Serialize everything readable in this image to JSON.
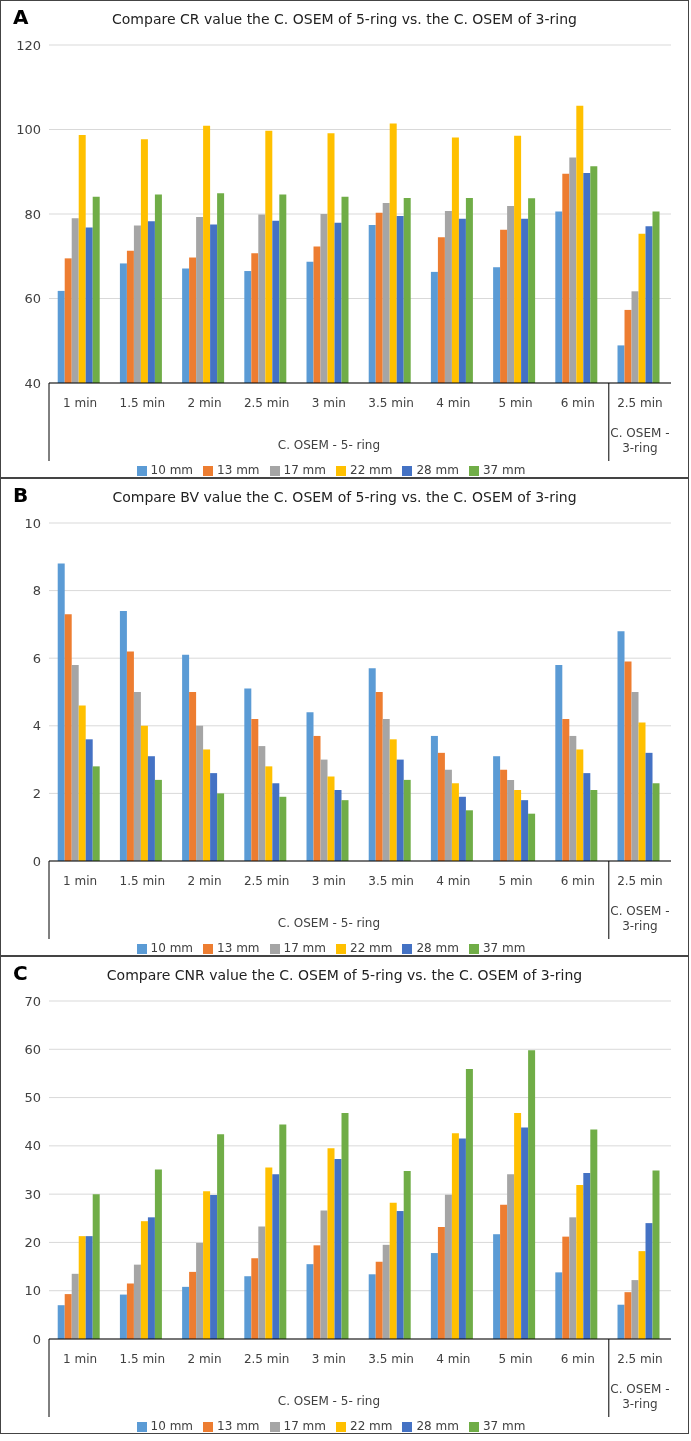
{
  "chart_data": [
    {
      "type": "bar",
      "title": "Compare CR value the C. OSEM of 5-ring vs. the C. OSEM of 3-ring",
      "annotations": [
        "A",
        "C. OSEM - 5- ring",
        "C. OSEM - 3-ring"
      ],
      "categories": [
        "1 min",
        "1.5 min",
        "2 min",
        "2.5 min",
        "3 min",
        "3.5 min",
        "4 min",
        "5 min",
        "6 min",
        "2.5 min"
      ],
      "ylim": [
        40,
        120
      ],
      "yticks": [
        40,
        60,
        80,
        100,
        120
      ],
      "grid": "y",
      "legend": "bottom",
      "series": [
        {
          "name": "10 mm",
          "color": "#5b9bd5",
          "values": [
            61.8,
            68.3,
            67.1,
            66.5,
            68.7,
            77.4,
            66.3,
            67.4,
            80.6,
            48.9
          ]
        },
        {
          "name": "13 mm",
          "color": "#ed7d31",
          "values": [
            69.5,
            71.3,
            69.7,
            70.7,
            72.3,
            80.3,
            74.5,
            76.3,
            89.5,
            57.3
          ]
        },
        {
          "name": "17 mm",
          "color": "#a5a5a5",
          "values": [
            79,
            77.3,
            79.3,
            79.9,
            80,
            82.6,
            80.7,
            81.9,
            93.4,
            61.7
          ]
        },
        {
          "name": "22 mm",
          "color": "#ffc000",
          "values": [
            98.7,
            97.7,
            100.9,
            99.7,
            99.1,
            101.4,
            98.1,
            98.5,
            105.6,
            75.3
          ]
        },
        {
          "name": "28 mm",
          "color": "#4472c4",
          "values": [
            76.8,
            78.3,
            77.5,
            78.4,
            77.9,
            79.5,
            78.9,
            78.9,
            89.7,
            77.1
          ]
        },
        {
          "name": "37 mm",
          "color": "#70ad47",
          "values": [
            84.1,
            84.6,
            84.9,
            84.6,
            84.1,
            83.8,
            83.8,
            83.7,
            91.3,
            80.6
          ]
        }
      ]
    },
    {
      "type": "bar",
      "title": "Compare BV value the C. OSEM of 5-ring vs. the C. OSEM of 3-ring",
      "annotations": [
        "B",
        "C. OSEM - 5- ring",
        "C. OSEM - 3-ring"
      ],
      "categories": [
        "1 min",
        "1.5 min",
        "2 min",
        "2.5 min",
        "3 min",
        "3.5 min",
        "4 min",
        "5 min",
        "6 min",
        "2.5 min"
      ],
      "ylim": [
        0,
        10
      ],
      "yticks": [
        0,
        2,
        4,
        6,
        8,
        10
      ],
      "grid": "y",
      "legend": "bottom",
      "series": [
        {
          "name": "10 mm",
          "color": "#5b9bd5",
          "values": [
            8.8,
            7.4,
            6.1,
            5.1,
            4.4,
            5.7,
            3.7,
            3.1,
            5.8,
            6.8
          ]
        },
        {
          "name": "13 mm",
          "color": "#ed7d31",
          "values": [
            7.3,
            6.2,
            5.0,
            4.2,
            3.7,
            5.0,
            3.2,
            2.7,
            4.2,
            5.9
          ]
        },
        {
          "name": "17 mm",
          "color": "#a5a5a5",
          "values": [
            5.8,
            5.0,
            4.0,
            3.4,
            3.0,
            4.2,
            2.7,
            2.4,
            3.7,
            5.0
          ]
        },
        {
          "name": "22 mm",
          "color": "#ffc000",
          "values": [
            4.6,
            4.0,
            3.3,
            2.8,
            2.5,
            3.6,
            2.3,
            2.1,
            3.3,
            4.1
          ]
        },
        {
          "name": "28 mm",
          "color": "#4472c4",
          "values": [
            3.6,
            3.1,
            2.6,
            2.3,
            2.1,
            3.0,
            1.9,
            1.8,
            2.6,
            3.2
          ]
        },
        {
          "name": "37 mm",
          "color": "#70ad47",
          "values": [
            2.8,
            2.4,
            2.0,
            1.9,
            1.8,
            2.4,
            1.5,
            1.4,
            2.1,
            2.3
          ]
        }
      ]
    },
    {
      "type": "bar",
      "title": "Compare CNR value the C. OSEM of 5-ring vs. the C. OSEM of 3-ring",
      "annotations": [
        "C",
        "C. OSEM - 5- ring",
        "C. OSEM - 3-ring"
      ],
      "categories": [
        "1 min",
        "1.5 min",
        "2 min",
        "2.5 min",
        "3 min",
        "3.5 min",
        "4 min",
        "5 min",
        "6 min",
        "2.5 min"
      ],
      "ylim": [
        0,
        70
      ],
      "yticks": [
        0,
        10,
        20,
        30,
        40,
        50,
        60,
        70
      ],
      "grid": "y",
      "legend": "bottom",
      "series": [
        {
          "name": "10 mm",
          "color": "#5b9bd5",
          "values": [
            7.0,
            9.2,
            10.8,
            13.0,
            15.5,
            13.4,
            17.8,
            21.7,
            13.8,
            7.1
          ]
        },
        {
          "name": "13 mm",
          "color": "#ed7d31",
          "values": [
            9.3,
            11.5,
            13.9,
            16.7,
            19.4,
            16.0,
            23.2,
            27.8,
            21.2,
            9.7
          ]
        },
        {
          "name": "17 mm",
          "color": "#a5a5a5",
          "values": [
            13.5,
            15.4,
            19.9,
            23.3,
            26.6,
            19.5,
            29.9,
            34.1,
            25.2,
            12.2
          ]
        },
        {
          "name": "22 mm",
          "color": "#ffc000",
          "values": [
            21.3,
            24.4,
            30.6,
            35.5,
            39.5,
            28.2,
            42.6,
            46.8,
            31.9,
            18.2
          ]
        },
        {
          "name": "28 mm",
          "color": "#4472c4",
          "values": [
            21.3,
            25.2,
            29.8,
            34.1,
            37.3,
            26.5,
            41.5,
            43.8,
            34.4,
            24.0
          ]
        },
        {
          "name": "37 mm",
          "color": "#70ad47",
          "values": [
            30.0,
            35.1,
            42.4,
            44.4,
            46.8,
            34.8,
            55.9,
            59.8,
            43.4,
            34.9
          ]
        }
      ]
    }
  ]
}
